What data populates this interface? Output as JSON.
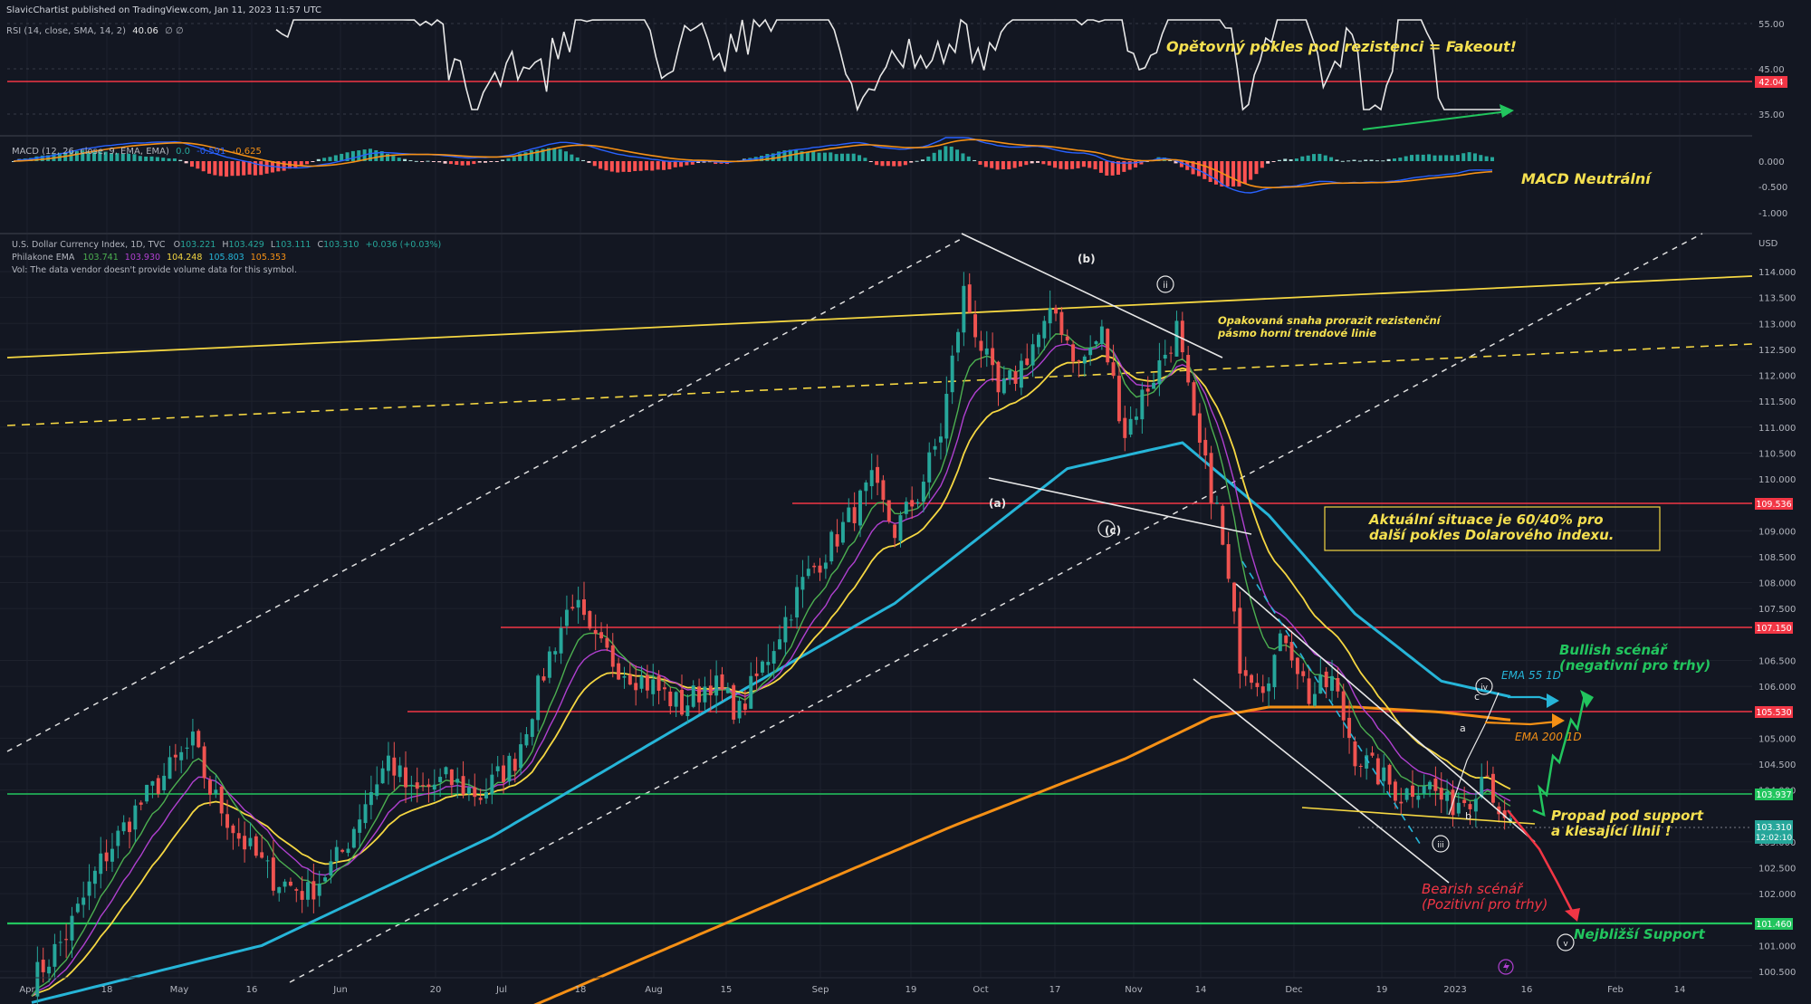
{
  "header": {
    "published": "SlavicChartist published on TradingView.com, Jan 11, 2023 11:57 UTC"
  },
  "colors": {
    "background": "#131722",
    "up": "#26a69a",
    "down": "#ef5350",
    "grid": "#1e222d",
    "resistance": "#f23645",
    "support": "#22c55e",
    "trend_yellow": "#f5d742",
    "ema_fast": "#4caf50",
    "ema_mid": "#b040d0",
    "ema_slow": "#f5d742",
    "ema55": "#26b5d8",
    "ema200": "#f59015",
    "annotation_yellow": "#f5e050",
    "annotation_green": "#22c55e",
    "annotation_red": "#f23645"
  },
  "rsi_panel": {
    "legend": "RSI (14, close, SMA, 14, 2)",
    "legend_value": "40.06",
    "legend_extra": "∅ ∅",
    "levels": [
      "55.00",
      "45.00",
      "35.00"
    ],
    "resistance_label": "42.04",
    "annotation": "Opětovný pokles pod rezistenci = Fakeout!"
  },
  "macd_panel": {
    "legend": "MACD (12, 26, close, 9, EMA, EMA)",
    "legend_values": [
      "0.0",
      "-0.591",
      "-0.625"
    ],
    "levels": [
      "0.000",
      "-0.500",
      "-1.000"
    ],
    "annotation": "MACD Neutrální"
  },
  "main_panel": {
    "legend_symbol": "U.S. Dollar Currency Index, 1D, TVC",
    "legend_ohlc": {
      "o": "103.221",
      "h": "103.429",
      "l": "103.111",
      "c": "103.310",
      "chg": "+0.036 (+0.03%)"
    },
    "legend_ema_title": "Philakone EMA",
    "legend_ema_values": [
      "103.741",
      "103.930",
      "104.248",
      "105.803",
      "105.353"
    ],
    "legend_vol": "Vol: The data vendor doesn't provide volume data for this symbol.",
    "currency": "USD",
    "price_labels": [
      "114.000",
      "113.500",
      "113.000",
      "112.500",
      "112.000",
      "111.500",
      "111.000",
      "110.500",
      "110.000",
      "109.000",
      "108.500",
      "108.000",
      "107.500",
      "106.500",
      "106.000",
      "105.000",
      "104.500",
      "104.000",
      "103.000",
      "102.500",
      "102.000",
      "101.000",
      "100.500"
    ],
    "level_badges": {
      "r1": "109.536",
      "r2": "107.150",
      "r3": "105.530",
      "s1": "103.937",
      "cur": "103.310",
      "countdown": "12:02:10",
      "s2": "101.460"
    },
    "wave_labels": {
      "b": "(b)",
      "a": "(a)",
      "c": "(c)",
      "ii": "ii",
      "iii": "iii",
      "iv": "iv",
      "v": "v",
      "small_a": "a",
      "small_b": "b",
      "small_c": "c"
    },
    "annotations": {
      "resistance_try": "Opakovaná snaha prorazit rezistenční",
      "resistance_try2": "pásmo horní trendové linie",
      "box_line1": "Aktuální situace je 60/40% pro",
      "box_line2": "další pokles Dolarového indexu.",
      "bull1": "Bullish scénář",
      "bull2": "(negativní pro trhy)",
      "ema55": "EMA 55 1D",
      "ema200": "EMA 200 1D",
      "break1": "Propad pod support",
      "break2": "a klesající linii !",
      "bear1": "Bearish scénář",
      "bear2": "(Pozitivní pro trhy)",
      "support": "Nejbližší Support"
    }
  },
  "x_axis": {
    "labels": [
      "Apr",
      "18",
      "May",
      "16",
      "Jun",
      "20",
      "Jul",
      "18",
      "Aug",
      "15",
      "Sep",
      "19",
      "Oct",
      "17",
      "Nov",
      "14",
      "Dec",
      "19",
      "2023",
      "16",
      "Feb",
      "14"
    ]
  },
  "chart_data": {
    "type": "candlestick",
    "instrument": "U.S. Dollar Currency Index",
    "timeframe": "1D",
    "price_range": [
      100.5,
      114.5
    ],
    "last_price": 103.31,
    "horizontal_levels": {
      "resistance": [
        109.536,
        107.15,
        105.53
      ],
      "support": [
        103.937,
        101.46
      ]
    },
    "close_path": [
      [
        0,
        100.3
      ],
      [
        6,
        101.2
      ],
      [
        12,
        102.6
      ],
      [
        18,
        103.6
      ],
      [
        24,
        104.4
      ],
      [
        28,
        104.9
      ],
      [
        31,
        104.0
      ],
      [
        36,
        103.1
      ],
      [
        42,
        102.3
      ],
      [
        48,
        102.0
      ],
      [
        54,
        102.8
      ],
      [
        58,
        103.8
      ],
      [
        62,
        104.6
      ],
      [
        66,
        103.9
      ],
      [
        72,
        104.2
      ],
      [
        78,
        103.9
      ],
      [
        84,
        104.6
      ],
      [
        90,
        106.6
      ],
      [
        94,
        107.7
      ],
      [
        97,
        106.9
      ],
      [
        102,
        106.4
      ],
      [
        108,
        106.0
      ],
      [
        113,
        105.6
      ],
      [
        118,
        106.1
      ],
      [
        123,
        105.5
      ],
      [
        128,
        106.6
      ],
      [
        134,
        108.0
      ],
      [
        140,
        108.9
      ],
      [
        146,
        109.9
      ],
      [
        150,
        109.0
      ],
      [
        154,
        109.7
      ],
      [
        158,
        110.9
      ],
      [
        162,
        113.6
      ],
      [
        164,
        112.9
      ],
      [
        168,
        111.6
      ],
      [
        171,
        112.0
      ],
      [
        174,
        112.6
      ],
      [
        178,
        113.2
      ],
      [
        182,
        112.2
      ],
      [
        186,
        112.8
      ],
      [
        190,
        110.9
      ],
      [
        193,
        111.6
      ],
      [
        196,
        112.2
      ],
      [
        199,
        112.9
      ],
      [
        202,
        111.0
      ],
      [
        206,
        109.4
      ],
      [
        210,
        106.5
      ],
      [
        214,
        106.1
      ],
      [
        218,
        107.0
      ],
      [
        222,
        105.8
      ],
      [
        226,
        106.1
      ],
      [
        230,
        104.7
      ],
      [
        234,
        104.3
      ],
      [
        238,
        103.9
      ],
      [
        242,
        104.2
      ],
      [
        246,
        103.7
      ],
      [
        250,
        103.9
      ],
      [
        253,
        104.5
      ],
      [
        255,
        103.3
      ],
      [
        257,
        103.31
      ]
    ],
    "ema_55": [
      [
        0,
        99.9
      ],
      [
        40,
        101.0
      ],
      [
        80,
        103.1
      ],
      [
        120,
        105.7
      ],
      [
        150,
        107.6
      ],
      [
        180,
        110.2
      ],
      [
        200,
        110.7
      ],
      [
        215,
        109.3
      ],
      [
        230,
        107.4
      ],
      [
        245,
        106.1
      ],
      [
        257,
        105.8
      ]
    ],
    "ema_200": [
      [
        80,
        99.5
      ],
      [
        120,
        101.4
      ],
      [
        160,
        103.3
      ],
      [
        190,
        104.6
      ],
      [
        205,
        105.4
      ],
      [
        215,
        105.6
      ],
      [
        230,
        105.6
      ],
      [
        245,
        105.5
      ],
      [
        257,
        105.35
      ]
    ],
    "scenarios": {
      "bullish": "Bullish scénář",
      "bearish": "Bearish scénář"
    }
  }
}
